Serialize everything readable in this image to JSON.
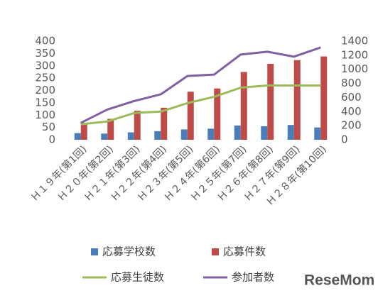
{
  "chart_data": {
    "type": "combo",
    "categories": [
      "Ｈ１９年(第1回)",
      "Ｈ２０年(第2回)",
      "Ｈ２１年(第3回)",
      "Ｈ２２年(第4回)",
      "Ｈ２３年(第5回)",
      "Ｈ２４年(第6回)",
      "Ｈ２５年(第7回)",
      "Ｈ２６年(第8回)",
      "Ｈ２７年(第9回)",
      "Ｈ２８年(第10回)"
    ],
    "series": [
      {
        "name": "応募学校数",
        "type": "bar",
        "color": "#4a7ebb",
        "values": [
          27,
          25,
          30,
          35,
          42,
          45,
          58,
          55,
          60,
          50
        ]
      },
      {
        "name": "応募件数",
        "type": "bar",
        "color": "#be4b48",
        "values": [
          68,
          85,
          118,
          130,
          195,
          208,
          275,
          308,
          323,
          338
        ]
      },
      {
        "name": "応募生徒数",
        "type": "line",
        "axis": "y2",
        "color": "#9bbb59",
        "values": [
          220,
          260,
          380,
          400,
          520,
          610,
          740,
          770,
          770,
          770
        ]
      },
      {
        "name": "参加者数",
        "type": "line",
        "axis": "y2",
        "color": "#7f60a0",
        "values": [
          240,
          430,
          550,
          645,
          905,
          925,
          1210,
          1250,
          1180,
          1310
        ]
      }
    ],
    "ylim": [
      0,
      400
    ],
    "yticks": [
      0,
      50,
      100,
      150,
      200,
      250,
      300,
      350,
      400
    ],
    "y2lim": [
      0,
      1400
    ],
    "y2ticks": [
      0,
      200,
      400,
      600,
      800,
      1000,
      1200,
      1400
    ],
    "watermark": "ReseMom"
  }
}
